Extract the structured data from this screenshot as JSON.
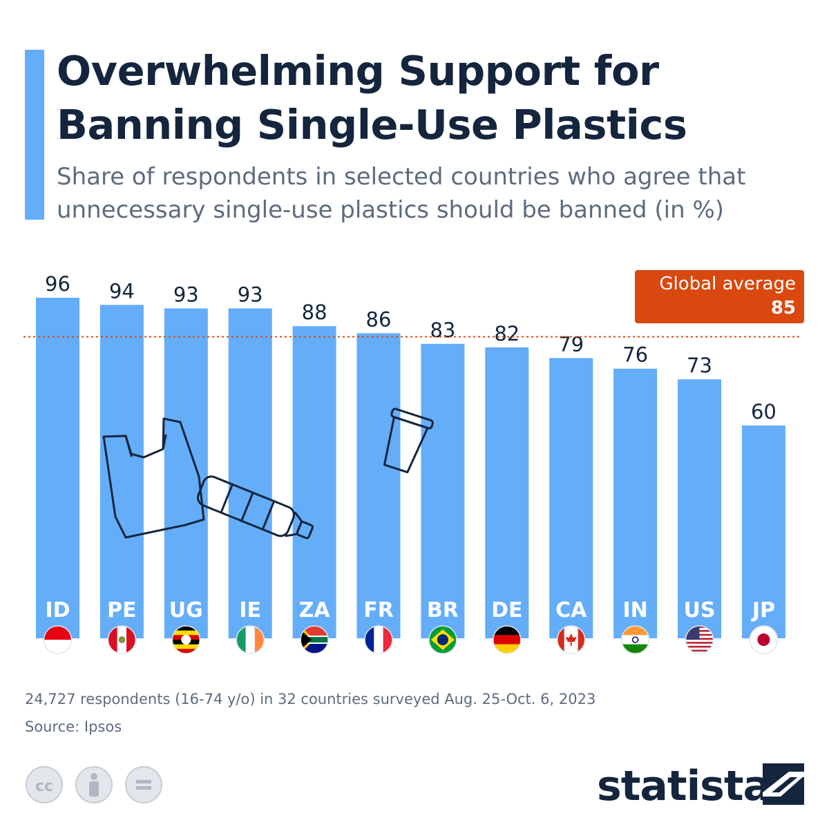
{
  "header": {
    "title": "Overwhelming Support for Banning Single-Use Plastics",
    "subtitle": "Share of respondents in selected countries who agree that unnecessary single-use plastics should be banned (in %)"
  },
  "chart_data": {
    "type": "bar",
    "title": "Overwhelming Support for Banning Single-Use Plastics",
    "subtitle": "Share of respondents in selected countries who agree that unnecessary single-use plastics should be banned (in %)",
    "categories": [
      "ID",
      "PE",
      "UG",
      "IE",
      "ZA",
      "FR",
      "BR",
      "DE",
      "CA",
      "IN",
      "US",
      "JP"
    ],
    "values": [
      96,
      94,
      93,
      93,
      88,
      86,
      83,
      82,
      79,
      76,
      73,
      60
    ],
    "ylim": [
      0,
      100
    ],
    "reference_line": {
      "label": "Global average",
      "value": 85,
      "color": "#d9480f",
      "style": "dotted"
    },
    "bar_color": "#64adf9",
    "grid": false,
    "legend": "none"
  },
  "average": {
    "label": "Global average",
    "value": "85"
  },
  "footer": {
    "note": "24,727 respondents (16-74 y/o) in 32 countries surveyed Aug. 25-Oct. 6, 2023",
    "source": "Source: Ipsos",
    "brand": "statista",
    "license_icons": [
      "cc-icon",
      "attribution-icon",
      "no-derivatives-icon"
    ]
  },
  "colors": {
    "bar": "#64adf9",
    "accent": "#64adf9",
    "average": "#d9480f",
    "title": "#14253d",
    "text": "#5d6b7d"
  }
}
